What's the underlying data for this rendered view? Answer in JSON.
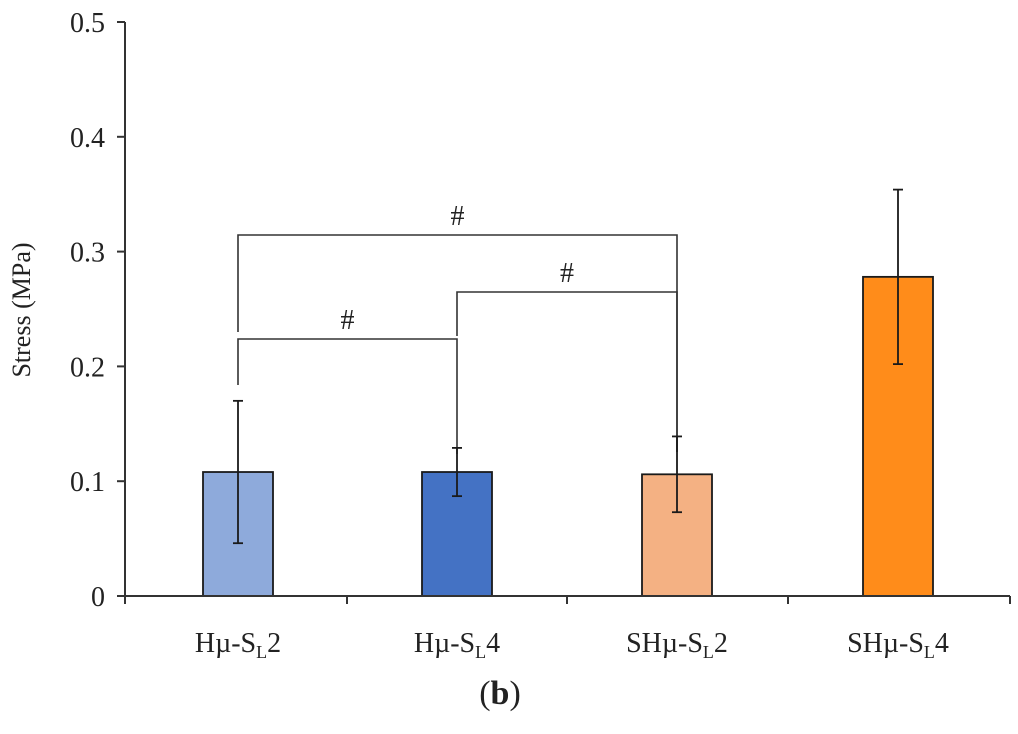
{
  "chart_data": {
    "type": "bar",
    "title": "",
    "xlabel": "",
    "ylabel": "Stress (MPa)",
    "ylim": [
      0,
      0.5
    ],
    "yticks": [
      "0",
      "0.1",
      "0.2",
      "0.3",
      "0.4",
      "0.5"
    ],
    "ytick_values": [
      0,
      0.1,
      0.2,
      0.3,
      0.4,
      0.5
    ],
    "categories": [
      {
        "prefix": "Hµ-S",
        "sub": "L",
        "suffix": "2"
      },
      {
        "prefix": "Hµ-S",
        "sub": "L",
        "suffix": "4"
      },
      {
        "prefix": "SHµ-S",
        "sub": "L",
        "suffix": "2"
      },
      {
        "prefix": "SHµ-S",
        "sub": "L",
        "suffix": "4"
      }
    ],
    "values": [
      0.108,
      0.108,
      0.106,
      0.278
    ],
    "errors": [
      0.062,
      0.021,
      0.033,
      0.076
    ],
    "colors": [
      "#8eaadb",
      "#4472c4",
      "#f4b183",
      "#ff8c1a"
    ],
    "significance": [
      {
        "from": 0,
        "to": 2,
        "label": "#"
      },
      {
        "from": 0,
        "to": 1,
        "label": "#"
      },
      {
        "from": 1,
        "to": 2,
        "label": "#"
      }
    ],
    "panel_label": {
      "open": "(",
      "letter": "b",
      "close": ")"
    }
  }
}
